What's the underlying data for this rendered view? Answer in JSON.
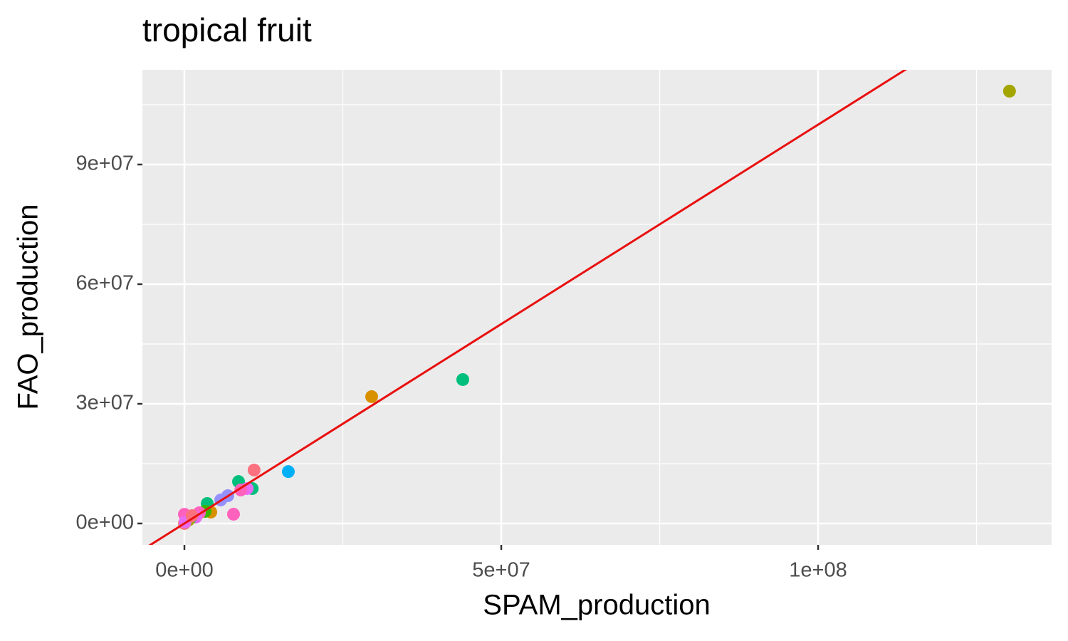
{
  "chart_data": {
    "type": "scatter",
    "title": "tropical fruit",
    "x_label": "SPAM_production",
    "y_label": "FAO_production",
    "x": [
      130200000,
      29550000,
      43930000,
      16400000,
      11000000,
      8540000,
      10700000,
      9900000,
      8900000,
      6850000,
      5730000,
      7750000,
      3600000,
      4160000,
      3260000,
      2360000,
      1800000,
      1000000,
      340000,
      670000,
      0,
      0,
      100000,
      1200000
    ],
    "values": [
      108400000,
      31800000,
      36070000,
      13000000,
      13400000,
      10500000,
      8750000,
      8750000,
      8400000,
      6960000,
      5900000,
      2320000,
      5000000,
      2860000,
      3040000,
      2680000,
      1600000,
      1430000,
      890000,
      890000,
      2300000,
      0,
      350000,
      1960000
    ],
    "colors": [
      "#a3a500",
      "#d89000",
      "#00bf7d",
      "#00b0f6",
      "#fc717f",
      "#00bf7d",
      "#00bf7d",
      "#e76bf3",
      "#ff62bc",
      "#9590ff",
      "#9590ff",
      "#ff62bc",
      "#00bf7d",
      "#d89000",
      "#39b600",
      "#ff62bc",
      "#e76bf3",
      "#00c1a3",
      "#a3a500",
      "#a3a500",
      "#ff62bc",
      "#f8766d",
      "#e76bf3",
      "#fc717f"
    ],
    "xlim": [
      -6630000,
      136850000
    ],
    "ylim": [
      -5360000,
      113750000
    ],
    "xticks": [
      {
        "value": 0,
        "label": "0e+00"
      },
      {
        "value": 50000000,
        "label": "5e+07"
      },
      {
        "value": 100000000,
        "label": "1e+08"
      }
    ],
    "yticks": [
      {
        "value": 0,
        "label": "0e+00"
      },
      {
        "value": 30000000,
        "label": "3e+07"
      },
      {
        "value": 60000000,
        "label": "6e+07"
      },
      {
        "value": 90000000,
        "label": "9e+07"
      }
    ],
    "xminor": [
      25000000,
      75000000,
      125000000
    ],
    "yminor": [
      15000000,
      45000000,
      75000000,
      105000000
    ],
    "reference_line": {
      "slope": 1,
      "intercept": 0,
      "color": "#e8100f"
    },
    "grid": true
  }
}
